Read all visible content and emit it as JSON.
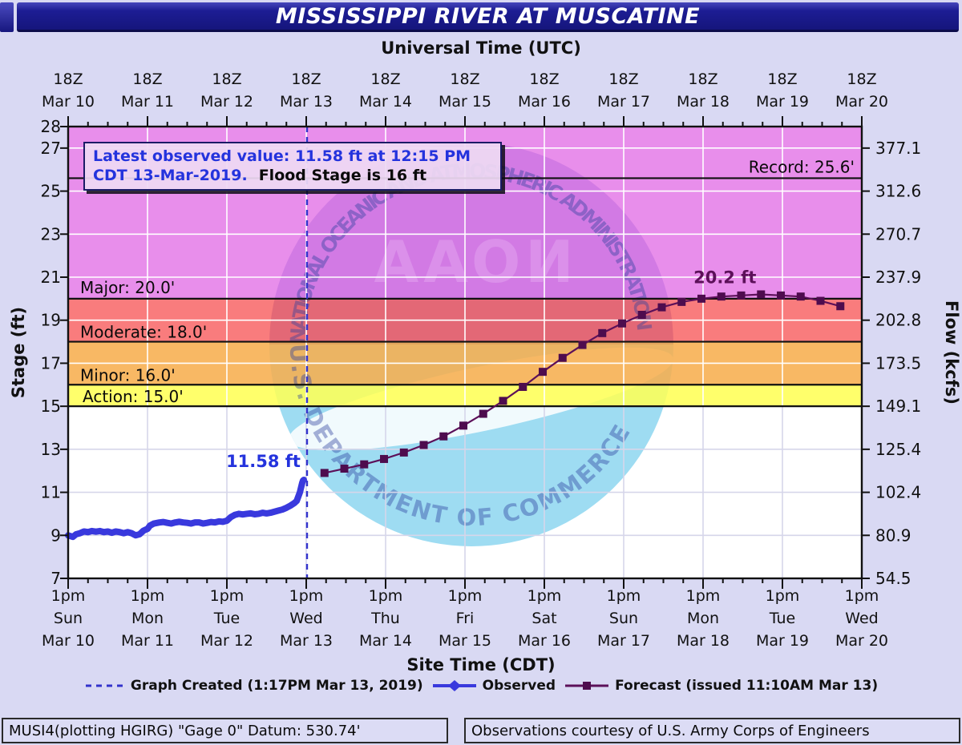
{
  "title": "MISSISSIPPI RIVER AT MUSCATINE",
  "top_axis": {
    "label": "Universal Time (UTC)",
    "hour_label": "18Z",
    "dates": [
      "Mar 10",
      "Mar 11",
      "Mar 12",
      "Mar 13",
      "Mar 14",
      "Mar 15",
      "Mar 16",
      "Mar 17",
      "Mar 18",
      "Mar 19",
      "Mar 20"
    ]
  },
  "bottom_axis": {
    "label": "Site Time (CDT)",
    "hour_label": "1pm",
    "weekdays": [
      "Sun",
      "Mon",
      "Tue",
      "Wed",
      "Thu",
      "Fri",
      "Sat",
      "Sun",
      "Mon",
      "Tue",
      "Wed"
    ],
    "dates": [
      "Mar 10",
      "Mar 11",
      "Mar 12",
      "Mar 13",
      "Mar 14",
      "Mar 15",
      "Mar 16",
      "Mar 17",
      "Mar 18",
      "Mar 19",
      "Mar 20"
    ]
  },
  "left_axis": {
    "label": "Stage (ft)",
    "ticks": [
      28,
      27,
      25,
      23,
      21,
      19,
      17,
      15,
      13,
      11,
      9,
      7
    ]
  },
  "right_axis": {
    "label": "Flow (kcfs)",
    "ticks": [
      {
        "stage": 27,
        "label": "377.1"
      },
      {
        "stage": 25,
        "label": "312.6"
      },
      {
        "stage": 23,
        "label": "270.7"
      },
      {
        "stage": 21,
        "label": "237.9"
      },
      {
        "stage": 19,
        "label": "202.8"
      },
      {
        "stage": 17,
        "label": "173.5"
      },
      {
        "stage": 15,
        "label": "149.1"
      },
      {
        "stage": 13,
        "label": "125.4"
      },
      {
        "stage": 11,
        "label": "102.4"
      },
      {
        "stage": 9,
        "label": "80.9"
      },
      {
        "stage": 7,
        "label": "54.5"
      }
    ]
  },
  "annotation": {
    "line1": "Latest observed value: 11.58 ft at 12:15 PM",
    "line2_blue": "CDT 13-Mar-2019.",
    "line2_black": "Flood Stage is 16 ft"
  },
  "record": {
    "label": "Record: 25.6'",
    "stage": 25.6
  },
  "flood_categories": [
    {
      "name": "Action",
      "label": "Action: 15.0'",
      "from": 15,
      "to": 16,
      "color": "#ffff55"
    },
    {
      "name": "Minor",
      "label": "Minor: 16.0'",
      "from": 16,
      "to": 18,
      "color": "#f7ad4d"
    },
    {
      "name": "Moderate",
      "label": "Moderate: 18.0'",
      "from": 18,
      "to": 20,
      "color": "#f8696a"
    },
    {
      "name": "Major",
      "label": "Major: 20.0'",
      "from": 20,
      "to": 28,
      "color": "#e57de8"
    }
  ],
  "point_labels": {
    "observed_value": "11.58 ft",
    "crest": "20.2 ft"
  },
  "legend": [
    {
      "label": "Graph Created (1:17PM Mar 13, 2019)"
    },
    {
      "label": "Observed"
    },
    {
      "label": "Forecast (issued 11:10AM Mar 13)"
    }
  ],
  "footer": {
    "left": "MUSI4(plotting HGIRG) \"Gage 0\" Datum: 530.74'",
    "right": "Observations courtesy of U.S. Army Corps of Engineers"
  },
  "watermark": {
    "center_text": "NOAA",
    "top_arc": "NATIONAL OCEANIC AND ATMOSPHERIC ADMINISTRATION",
    "bottom_arc": "U.S. DEPARTMENT OF COMMERCE"
  },
  "colors": {
    "background": "#d9d9f3",
    "observed": "#3939dd",
    "forecast_line": "#5c1059",
    "forecast_marker": "#4e0c4e",
    "graph_created": "#3333cc",
    "annotation_blue": "#2433dd",
    "grid_light": "#d6d6ea",
    "grid_white": "#ffffff",
    "logo_top": "#5866c6",
    "logo_bottom": "#9edcf2"
  },
  "chart_data": {
    "type": "line",
    "x_unit": "days since Mar 10 1:00pm CDT",
    "x_range": [
      0,
      10
    ],
    "stage_range": [
      7,
      28
    ],
    "flood_stage_ft": 16,
    "graph_created_x": 3.01,
    "series": [
      {
        "name": "Observed",
        "points": [
          [
            0,
            9.0
          ],
          [
            0.06,
            8.93
          ],
          [
            0.1,
            9.05
          ],
          [
            0.15,
            9.1
          ],
          [
            0.2,
            9.18
          ],
          [
            0.25,
            9.15
          ],
          [
            0.3,
            9.2
          ],
          [
            0.35,
            9.17
          ],
          [
            0.4,
            9.2
          ],
          [
            0.45,
            9.15
          ],
          [
            0.5,
            9.18
          ],
          [
            0.55,
            9.12
          ],
          [
            0.6,
            9.18
          ],
          [
            0.65,
            9.15
          ],
          [
            0.7,
            9.1
          ],
          [
            0.75,
            9.15
          ],
          [
            0.8,
            9.1
          ],
          [
            0.85,
            9.0
          ],
          [
            0.9,
            9.05
          ],
          [
            0.95,
            9.22
          ],
          [
            1.0,
            9.3
          ],
          [
            1.03,
            9.45
          ],
          [
            1.08,
            9.55
          ],
          [
            1.15,
            9.6
          ],
          [
            1.2,
            9.62
          ],
          [
            1.25,
            9.58
          ],
          [
            1.3,
            9.55
          ],
          [
            1.35,
            9.6
          ],
          [
            1.4,
            9.63
          ],
          [
            1.45,
            9.6
          ],
          [
            1.5,
            9.58
          ],
          [
            1.55,
            9.55
          ],
          [
            1.6,
            9.6
          ],
          [
            1.65,
            9.6
          ],
          [
            1.7,
            9.55
          ],
          [
            1.75,
            9.58
          ],
          [
            1.8,
            9.62
          ],
          [
            1.85,
            9.6
          ],
          [
            1.9,
            9.65
          ],
          [
            1.95,
            9.63
          ],
          [
            2.0,
            9.68
          ],
          [
            2.05,
            9.85
          ],
          [
            2.1,
            9.95
          ],
          [
            2.15,
            10.0
          ],
          [
            2.2,
            9.97
          ],
          [
            2.25,
            10.0
          ],
          [
            2.3,
            10.02
          ],
          [
            2.35,
            9.98
          ],
          [
            2.4,
            10.0
          ],
          [
            2.45,
            10.05
          ],
          [
            2.5,
            10.02
          ],
          [
            2.55,
            10.05
          ],
          [
            2.6,
            10.1
          ],
          [
            2.65,
            10.15
          ],
          [
            2.7,
            10.2
          ],
          [
            2.75,
            10.28
          ],
          [
            2.8,
            10.38
          ],
          [
            2.85,
            10.5
          ],
          [
            2.88,
            10.6
          ],
          [
            2.9,
            10.8
          ],
          [
            2.92,
            11.0
          ],
          [
            2.94,
            11.3
          ],
          [
            2.95,
            11.45
          ],
          [
            2.96,
            11.55
          ],
          [
            2.97,
            11.58
          ]
        ]
      },
      {
        "name": "Forecast",
        "points": [
          [
            3.23,
            11.9
          ],
          [
            3.48,
            12.1
          ],
          [
            3.73,
            12.3
          ],
          [
            3.98,
            12.55
          ],
          [
            4.23,
            12.85
          ],
          [
            4.48,
            13.2
          ],
          [
            4.73,
            13.6
          ],
          [
            4.98,
            14.1
          ],
          [
            5.23,
            14.65
          ],
          [
            5.48,
            15.25
          ],
          [
            5.73,
            15.9
          ],
          [
            5.98,
            16.6
          ],
          [
            6.23,
            17.25
          ],
          [
            6.48,
            17.85
          ],
          [
            6.73,
            18.4
          ],
          [
            6.98,
            18.85
          ],
          [
            7.23,
            19.25
          ],
          [
            7.48,
            19.6
          ],
          [
            7.73,
            19.85
          ],
          [
            7.98,
            20.0
          ],
          [
            8.23,
            20.1
          ],
          [
            8.48,
            20.15
          ],
          [
            8.73,
            20.2
          ],
          [
            8.98,
            20.15
          ],
          [
            9.23,
            20.1
          ],
          [
            9.48,
            19.9
          ],
          [
            9.73,
            19.65
          ]
        ]
      }
    ],
    "crest": {
      "x": 8.73,
      "stage": 20.2
    }
  }
}
